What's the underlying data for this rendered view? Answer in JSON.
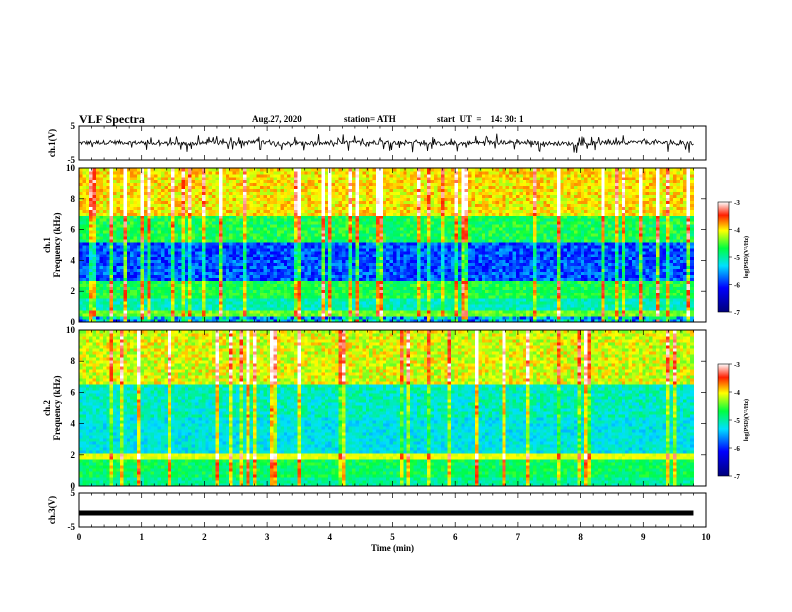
{
  "header": {
    "title": "VLF Spectra",
    "date": "Aug.27, 2020",
    "station": "station= ATH",
    "start": "start  UT  =    14: 30: 1"
  },
  "chart_data": [
    {
      "type": "line",
      "panel": "ch1-waveform",
      "ylabel": "ch.1(V)",
      "ylim": [
        -5,
        5
      ],
      "yticks": [
        "5",
        "-5"
      ],
      "xlim": [
        0,
        10
      ],
      "description_free": true
    },
    {
      "type": "heatmap",
      "panel": "ch1-spectrogram",
      "ylabel_line1": "ch.1",
      "ylabel_line2": "Frequency (kHz)",
      "ylim": [
        0,
        10
      ],
      "yticks": [
        "0",
        "2",
        "4",
        "6",
        "8",
        "10"
      ],
      "xlim": [
        0,
        9.8
      ],
      "colorbar": {
        "label": "log(PSD)(V²/Hz)",
        "ticks": [
          "-3",
          "-4",
          "-5",
          "-6",
          "-7"
        ],
        "range": [
          -7,
          -3
        ]
      }
    },
    {
      "type": "heatmap",
      "panel": "ch2-spectrogram",
      "ylabel_line1": "ch.2",
      "ylabel_line2": "Frequency (kHz)",
      "ylim": [
        0,
        10
      ],
      "yticks": [
        "0",
        "2",
        "4",
        "6",
        "8",
        "10"
      ],
      "xlim": [
        0,
        9.8
      ],
      "colorbar": {
        "label": "log(PSD)(V²/Hz)",
        "ticks": [
          "-3",
          "-4",
          "-5",
          "-6",
          "-7"
        ],
        "range": [
          -7,
          -3
        ]
      }
    },
    {
      "type": "line",
      "panel": "ch3-waveform",
      "ylabel": "ch.3(V)",
      "ylim": [
        -5,
        5
      ],
      "yticks": [
        "5",
        "-5"
      ],
      "level": 0
    }
  ],
  "xaxis": {
    "label": "Time  (min)",
    "ticks": [
      "0",
      "1",
      "2",
      "3",
      "4",
      "5",
      "6",
      "7",
      "8",
      "9",
      "10"
    ],
    "range": [
      0,
      10
    ]
  }
}
